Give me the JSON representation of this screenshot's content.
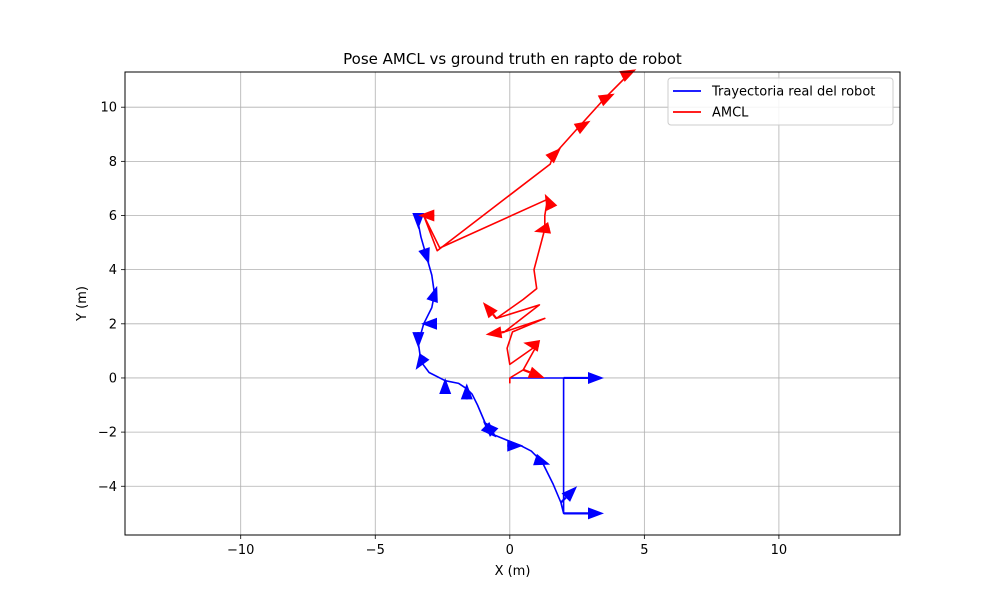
{
  "chart_data": {
    "type": "line",
    "title": "Pose AMCL vs ground truth en rapto de robot",
    "xlabel": "X (m)",
    "ylabel": "Y (m)",
    "xlim": [
      -14.3,
      14.5
    ],
    "ylim": [
      -5.8,
      11.3
    ],
    "xticks": [
      -10,
      -5,
      0,
      5,
      10
    ],
    "yticks": [
      -4,
      -2,
      0,
      2,
      4,
      6,
      8,
      10
    ],
    "grid": true,
    "legend_position": "top-right",
    "series": [
      {
        "name": "Trayectoria real del robot",
        "color": "#0000ff",
        "x": [
          0.0,
          2.0,
          2.0,
          1.9,
          1.6,
          1.2,
          0.8,
          0.4,
          -0.1,
          -0.6,
          -0.9,
          -1.2,
          -1.4,
          -1.6,
          -1.9,
          -2.4,
          -3.0,
          -3.3,
          -3.4,
          -3.2,
          -2.9,
          -2.8,
          -2.9,
          -3.1,
          -3.3,
          -3.4
        ],
        "y": [
          0.0,
          0.0,
          -5.0,
          -4.6,
          -3.9,
          -3.1,
          -2.7,
          -2.5,
          -2.3,
          -2.1,
          -1.7,
          -1.0,
          -0.6,
          -0.4,
          -0.2,
          -0.1,
          0.2,
          0.6,
          1.3,
          2.0,
          2.6,
          3.1,
          3.8,
          4.5,
          5.2,
          5.7
        ],
        "arrows": [
          [
            3.5,
            0.0
          ],
          [
            3.5,
            -5.0
          ],
          [
            2.5,
            -4.0
          ],
          [
            1.5,
            -3.2
          ],
          [
            0.5,
            -2.5
          ],
          [
            -0.5,
            -2.2
          ],
          [
            -1.0,
            -1.6
          ],
          [
            -1.6,
            -0.2
          ],
          [
            -2.4,
            0.0
          ],
          [
            -3.5,
            0.3
          ],
          [
            -3.4,
            1.1
          ],
          [
            -3.3,
            2.0
          ],
          [
            -2.7,
            3.4
          ],
          [
            -3.0,
            4.2
          ],
          [
            -3.4,
            5.5
          ]
        ]
      },
      {
        "name": "AMCL",
        "color": "#ff0000",
        "x": [
          0.0,
          0.0,
          0.5,
          1.0,
          0.0,
          -0.1,
          0.1,
          1.3,
          -0.2,
          1.1,
          -0.5,
          0.5,
          1.0,
          0.9,
          1.3,
          1.3,
          1.4,
          -2.6,
          -3.2,
          -2.7,
          1.5,
          1.6,
          2.5,
          3.5,
          4.5
        ],
        "y": [
          -0.2,
          0.0,
          0.3,
          1.2,
          0.5,
          1.1,
          1.7,
          2.2,
          1.7,
          2.7,
          2.2,
          2.9,
          3.3,
          4.0,
          5.5,
          6.0,
          6.6,
          4.8,
          6.0,
          4.7,
          7.9,
          8.2,
          9.2,
          10.3,
          11.3
        ],
        "arrows": [
          [
            1.3,
            0.0
          ],
          [
            0.5,
            1.3
          ],
          [
            -0.9,
            1.6
          ],
          [
            -1.0,
            2.8
          ],
          [
            0.9,
            5.4
          ],
          [
            1.3,
            6.8
          ],
          [
            -3.4,
            6.0
          ],
          [
            1.9,
            8.5
          ],
          [
            3.0,
            9.5
          ],
          [
            3.9,
            10.5
          ],
          [
            4.7,
            11.4
          ]
        ]
      }
    ]
  }
}
